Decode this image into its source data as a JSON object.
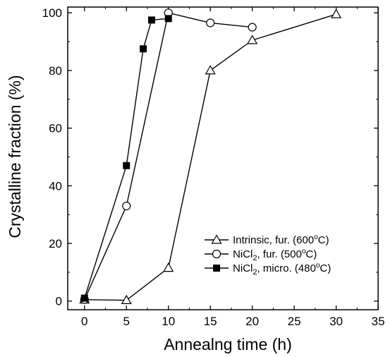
{
  "chart_data": {
    "type": "line",
    "xlabel": "Annealng time (h)",
    "ylabel": "Crystalline fraction (%)",
    "xlim": [
      -2,
      35
    ],
    "ylim": [
      -3,
      102
    ],
    "x_ticks": [
      0,
      5,
      10,
      15,
      20,
      25,
      30,
      35
    ],
    "y_ticks": [
      0,
      20,
      40,
      60,
      80,
      100
    ],
    "grid": false,
    "legend_position": "bottom-right",
    "series": [
      {
        "name": "Intrinsic, fur. (600°C)",
        "legend": {
          "pre": "Intrinsic, fur. (600",
          "sup": "o",
          "post": "C)"
        },
        "marker": "open-triangle",
        "x": [
          0,
          5,
          10,
          15,
          20,
          30
        ],
        "y": [
          0.5,
          0.3,
          11.5,
          80,
          90.5,
          99.5
        ]
      },
      {
        "name": "NiCl2, fur. (500°C)",
        "legend": {
          "pre": "NiCl",
          "sub": "2",
          "mid": ", fur. (500",
          "sup": "o",
          "post": "C)"
        },
        "marker": "open-circle",
        "x": [
          0,
          5,
          10,
          15,
          20
        ],
        "y": [
          0.5,
          33,
          100,
          96.5,
          95
        ]
      },
      {
        "name": "NiCl2, micro. (480°C)",
        "legend": {
          "pre": "NiCl",
          "sub": "2",
          "mid": ", micro. (480",
          "sup": "o",
          "post": "C)"
        },
        "marker": "filled-square",
        "x": [
          0,
          5,
          7,
          8,
          10
        ],
        "y": [
          1,
          47,
          87.5,
          97.5,
          98
        ]
      }
    ]
  },
  "colors": {
    "ink": "#000000",
    "background": "#ffffff"
  }
}
